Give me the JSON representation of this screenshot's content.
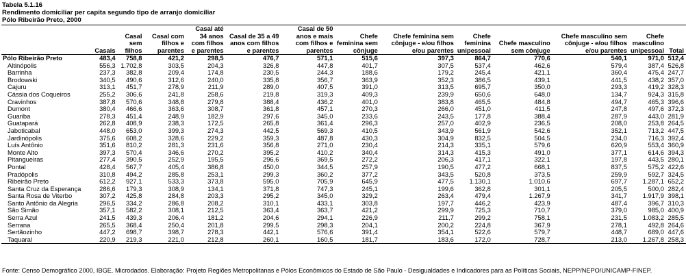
{
  "title": "Tabela 5.1.16",
  "subtitle": "Rendimento domiciliar per capita segundo tipo de arranjo domiciliar",
  "region_line": "Pólo Ribeirão Preto, 2000",
  "columns": [
    "",
    "Casais",
    "Casal sem filhos",
    "Casal com filhos e parentes",
    "Casal até 34 anos com filhos e parentes",
    "Casal de 35 a 49 anos com filhos e parentes",
    "Casal de 50 anos e mais com filhos e parentes",
    "Chefe feminina sem cônjuge",
    "Chefe feminina sem cônjuge - e/ou filhos e/ou parentes",
    "Chefe feminina unipessoal",
    "Chefe masculino sem cônjuge",
    "Chefe masculino sem cônjuge - e/ou filhos e/ou parentes",
    "Chefe masculino unipessoal",
    "Total"
  ],
  "rows": [
    [
      "Pólo Ribeirão Preto",
      "483,4",
      "758,8",
      "421,2",
      "298,5",
      "476,7",
      "571,1",
      "515,6",
      "397,3",
      "864,7",
      "770,6",
      "540,1",
      "971,0",
      "512,4"
    ],
    [
      "Altinópolis",
      "556,3",
      "1.702,8",
      "303,5",
      "204,3",
      "326,8",
      "447,8",
      "401,7",
      "307,5",
      "537,4",
      "462,6",
      "579,4",
      "387,4",
      "526,8"
    ],
    [
      "Barrinha",
      "237,3",
      "382,8",
      "209,4",
      "174,8",
      "230,5",
      "244,3",
      "188,6",
      "179,2",
      "245,4",
      "421,1",
      "360,4",
      "475,4",
      "247,7"
    ],
    [
      "Brodowski",
      "340,5",
      "490,6",
      "312,6",
      "240,0",
      "335,8",
      "356,7",
      "363,9",
      "352,3",
      "386,5",
      "439,1",
      "441,5",
      "438,2",
      "357,0"
    ],
    [
      "Cajuru",
      "313,1",
      "451,7",
      "278,9",
      "211,9",
      "289,0",
      "407,5",
      "391,0",
      "313,5",
      "695,7",
      "350,0",
      "293,3",
      "419,2",
      "328,3"
    ],
    [
      "Cássia dos Coqueiros",
      "255,2",
      "306,6",
      "241,8",
      "258,6",
      "219,8",
      "319,3",
      "409,3",
      "239,9",
      "650,6",
      "648,0",
      "134,7",
      "924,3",
      "315,8"
    ],
    [
      "Cravinhos",
      "387,8",
      "570,6",
      "348,8",
      "279,8",
      "388,4",
      "436,2",
      "401,0",
      "383,8",
      "465,5",
      "484,8",
      "494,7",
      "465,3",
      "396,6"
    ],
    [
      "Dumont",
      "380,4",
      "466,6",
      "363,6",
      "308,7",
      "361,8",
      "457,1",
      "270,3",
      "266,0",
      "451,0",
      "411,5",
      "247,8",
      "497,6",
      "372,3"
    ],
    [
      "Guariba",
      "278,3",
      "451,4",
      "248,9",
      "182,9",
      "297,6",
      "345,0",
      "233,6",
      "243,5",
      "177,8",
      "388,4",
      "287,9",
      "443,0",
      "281,9"
    ],
    [
      "Guatapará",
      "262,8",
      "408,9",
      "238,3",
      "172,5",
      "265,8",
      "361,4",
      "296,3",
      "257,0",
      "402,9",
      "236,5",
      "208,0",
      "253,8",
      "264,5"
    ],
    [
      "Jaboticabal",
      "448,0",
      "653,0",
      "399,3",
      "274,3",
      "442,5",
      "569,3",
      "410,5",
      "343,9",
      "561,9",
      "542,6",
      "352,1",
      "713,2",
      "447,5"
    ],
    [
      "Jardinópolis",
      "375,6",
      "608,2",
      "328,6",
      "229,2",
      "359,3",
      "487,8",
      "430,3",
      "304,9",
      "832,5",
      "504,5",
      "234,0",
      "716,3",
      "392,4"
    ],
    [
      "Luís Antônio",
      "351,6",
      "810,2",
      "281,3",
      "231,6",
      "356,8",
      "271,0",
      "230,4",
      "214,3",
      "335,1",
      "579,6",
      "620,9",
      "553,4",
      "360,9"
    ],
    [
      "Monte Alto",
      "397,3",
      "570,4",
      "346,6",
      "270,2",
      "395,2",
      "410,2",
      "340,4",
      "314,3",
      "415,3",
      "491,0",
      "377,1",
      "614,6",
      "394,3"
    ],
    [
      "Pitangueiras",
      "277,4",
      "390,5",
      "252,9",
      "195,5",
      "296,6",
      "369,5",
      "272,2",
      "206,3",
      "417,1",
      "322,1",
      "197,8",
      "443,5",
      "280,1"
    ],
    [
      "Pontal",
      "428,4",
      "567,7",
      "405,4",
      "386,8",
      "450,0",
      "344,5",
      "257,9",
      "190,5",
      "477,2",
      "668,1",
      "837,5",
      "575,2",
      "422,6"
    ],
    [
      "Pradópolis",
      "310,8",
      "494,2",
      "285,8",
      "253,1",
      "299,3",
      "360,2",
      "377,2",
      "343,5",
      "520,8",
      "373,5",
      "259,9",
      "592,7",
      "324,5"
    ],
    [
      "Ribeirão Preto",
      "612,2",
      "927,1",
      "533,3",
      "373,8",
      "595,0",
      "705,9",
      "645,9",
      "477,5",
      "1.130,1",
      "1.010,6",
      "697,7",
      "1.287,1",
      "652,2"
    ],
    [
      "Santa Cruz da Esperança",
      "286,6",
      "179,3",
      "308,9",
      "134,1",
      "371,8",
      "747,3",
      "245,1",
      "199,6",
      "362,8",
      "301,1",
      "205,5",
      "500,0",
      "282,4"
    ],
    [
      "Santa Rosa de Viterbo",
      "307,2",
      "425,8",
      "284,8",
      "203,3",
      "295,2",
      "345,0",
      "329,2",
      "263,4",
      "479,4",
      "1.267,9",
      "341,7",
      "1.917,9",
      "398,1"
    ],
    [
      "Santo Antônio da Alegria",
      "296,5",
      "334,2",
      "286,8",
      "208,2",
      "310,1",
      "433,1",
      "303,8",
      "197,7",
      "446,2",
      "423,9",
      "487,4",
      "396,7",
      "310,3"
    ],
    [
      "São Simão",
      "357,1",
      "582,2",
      "308,1",
      "212,5",
      "363,4",
      "363,7",
      "421,2",
      "299,9",
      "725,3",
      "710,7",
      "379,0",
      "985,0",
      "400,9"
    ],
    [
      "Serra Azul",
      "241,5",
      "439,3",
      "206,4",
      "181,2",
      "204,6",
      "294,1",
      "226,9",
      "211,7",
      "299,2",
      "758,1",
      "231,5",
      "1.083,2",
      "285,5"
    ],
    [
      "Serrana",
      "265,5",
      "368,4",
      "250,4",
      "201,8",
      "299,5",
      "298,3",
      "204,1",
      "200,2",
      "224,8",
      "367,9",
      "278,1",
      "492,8",
      "264,6"
    ],
    [
      "Sertãozinho",
      "447,2",
      "698,7",
      "398,7",
      "278,3",
      "442,1",
      "576,6",
      "391,4",
      "354,1",
      "522,6",
      "579,7",
      "448,7",
      "689,0",
      "447,6"
    ],
    [
      "Taquaral",
      "220,9",
      "219,3",
      "221,0",
      "212,8",
      "260,1",
      "160,5",
      "181,7",
      "183,6",
      "172,0",
      "728,7",
      "213,0",
      "1.267,8",
      "258,3"
    ]
  ],
  "source": "Fonte: Censo Demográfico 2000, IBGE. Microdados. Elaboração: Projeto Regiões Metropolitanas e Pólos Econômicos do Estado de São Paulo - Desigualdades e Indicadores para as Políticas Sociais, NEPP/NEPO/UNICAMP-FINEP."
}
